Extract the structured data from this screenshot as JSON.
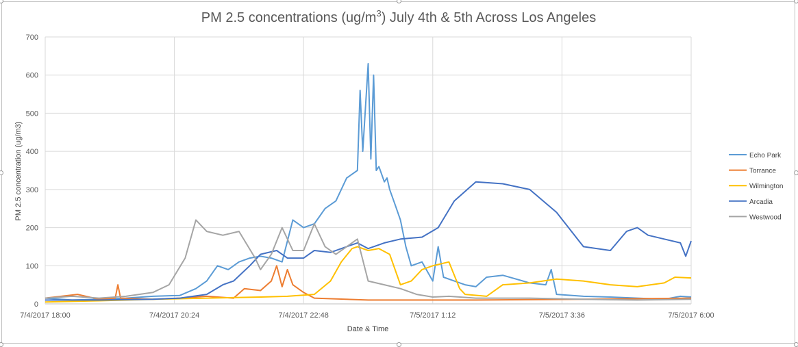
{
  "chart_data": {
    "type": "line",
    "title": "PM 2.5 concentrations (ug/m",
    "title_superscript": "3",
    "title_suffix": ") July 4th & 5th Across Los Angeles",
    "xlabel": "Date & Time",
    "ylabel": "PM 2.5 concentration (ug/m3)",
    "ylim": [
      0,
      700
    ],
    "yticks": [
      0,
      100,
      200,
      300,
      400,
      500,
      600,
      700
    ],
    "xlim": [
      0,
      12
    ],
    "x_unit": "hours after 7/4/2017 18:00",
    "xtick_labels": [
      "7/4/2017 18:00",
      "7/4/2017 20:24",
      "7/4/2017 22:48",
      "7/5/2017 1:12",
      "7/5/2017 3:36",
      "7/5/2017 6:00"
    ],
    "grid": true,
    "legend_position": "right",
    "series": [
      {
        "name": "Echo Park",
        "color": "#5b9bd5",
        "x": [
          0,
          0.5,
          1,
          1.5,
          2,
          2.5,
          2.8,
          3,
          3.2,
          3.4,
          3.6,
          3.8,
          4,
          4.2,
          4.4,
          4.6,
          4.8,
          5,
          5.2,
          5.4,
          5.6,
          5.8,
          5.85,
          5.9,
          6,
          6.05,
          6.1,
          6.15,
          6.2,
          6.3,
          6.35,
          6.4,
          6.5,
          6.6,
          6.7,
          6.8,
          7,
          7.2,
          7.3,
          7.4,
          7.6,
          7.8,
          8,
          8.2,
          8.5,
          9,
          9.3,
          9.4,
          9.5,
          10,
          10.5,
          11,
          11.5,
          11.8,
          12
        ],
        "y": [
          15,
          10,
          12,
          15,
          20,
          22,
          40,
          60,
          100,
          90,
          110,
          120,
          125,
          120,
          110,
          220,
          200,
          210,
          250,
          270,
          330,
          350,
          560,
          400,
          630,
          380,
          600,
          350,
          360,
          320,
          330,
          300,
          260,
          220,
          150,
          100,
          110,
          60,
          150,
          70,
          60,
          50,
          45,
          70,
          75,
          55,
          50,
          90,
          25,
          20,
          18,
          15,
          12,
          20,
          18
        ]
      },
      {
        "name": "Torrance",
        "color": "#ed7d31",
        "x": [
          0,
          0.6,
          1,
          1.3,
          1.35,
          1.4,
          2,
          2.5,
          3,
          3.5,
          3.7,
          4,
          4.2,
          4.3,
          4.4,
          4.5,
          4.6,
          4.8,
          5,
          6,
          8,
          10,
          12
        ],
        "y": [
          15,
          25,
          12,
          15,
          50,
          15,
          12,
          15,
          20,
          15,
          40,
          35,
          60,
          100,
          45,
          90,
          50,
          30,
          15,
          10,
          10,
          12,
          15
        ]
      },
      {
        "name": "Wilmington",
        "color": "#ffc000",
        "x": [
          0,
          1,
          2,
          3,
          4,
          4.5,
          5,
          5.3,
          5.5,
          5.7,
          5.8,
          6,
          6.2,
          6.4,
          6.6,
          6.8,
          7,
          7.2,
          7.5,
          7.7,
          7.8,
          8.2,
          8.5,
          9,
          9.5,
          10,
          10.5,
          11,
          11.5,
          11.7,
          12
        ],
        "y": [
          5,
          8,
          12,
          15,
          18,
          20,
          25,
          60,
          110,
          145,
          150,
          140,
          145,
          130,
          50,
          60,
          90,
          100,
          110,
          40,
          25,
          20,
          50,
          55,
          65,
          60,
          50,
          45,
          55,
          70,
          68
        ]
      },
      {
        "name": "Arcadia",
        "color": "#4472c4",
        "x": [
          0,
          1,
          2,
          2.5,
          3,
          3.3,
          3.5,
          3.8,
          4,
          4.3,
          4.5,
          4.8,
          5,
          5.3,
          5.6,
          5.8,
          6,
          6.3,
          6.6,
          7,
          7.3,
          7.6,
          8,
          8.5,
          9,
          9.5,
          10,
          10.5,
          10.8,
          11,
          11.2,
          11.5,
          11.8,
          11.9,
          12
        ],
        "y": [
          10,
          10,
          12,
          15,
          25,
          50,
          60,
          100,
          130,
          140,
          120,
          120,
          140,
          135,
          150,
          160,
          145,
          160,
          170,
          175,
          200,
          270,
          320,
          315,
          300,
          240,
          150,
          140,
          190,
          200,
          180,
          170,
          160,
          125,
          165
        ]
      },
      {
        "name": "Westwood",
        "color": "#a5a5a5",
        "x": [
          0,
          0.5,
          1,
          1.5,
          2,
          2.3,
          2.6,
          2.8,
          3,
          3.3,
          3.6,
          3.9,
          4,
          4.2,
          4.4,
          4.6,
          4.8,
          5,
          5.2,
          5.4,
          5.6,
          5.8,
          6,
          6.3,
          6.6,
          6.9,
          7.2,
          7.5,
          8,
          9,
          10,
          11,
          12
        ],
        "y": [
          15,
          20,
          15,
          20,
          30,
          50,
          120,
          220,
          190,
          180,
          190,
          120,
          90,
          130,
          200,
          140,
          140,
          210,
          150,
          130,
          150,
          170,
          60,
          50,
          40,
          25,
          18,
          20,
          15,
          15,
          12,
          10,
          12
        ]
      }
    ]
  }
}
